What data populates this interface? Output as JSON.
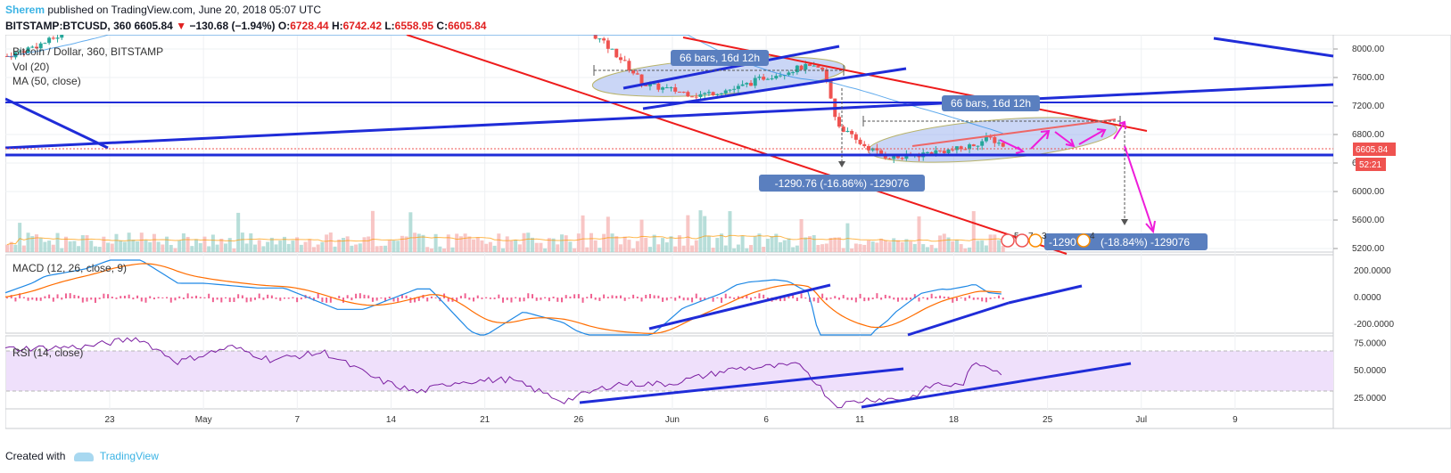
{
  "header": {
    "author": "Sherem",
    "published_text": " published on TradingView.com, June 20, 2018 05:07 UTC",
    "symbol": "BITSTAMP:BTCUSD, 360",
    "last": "6605.84",
    "change_arrow": "▼",
    "change": "−130.68 (−1.94%)",
    "o_label": "O:",
    "o_value": "6728.44",
    "h_label": "H:",
    "h_value": "6742.42",
    "l_label": "L:",
    "l_value": "6558.95",
    "c_label": "C:",
    "c_value": "6605.84"
  },
  "legend": {
    "main": "Bitcoin / Dollar, 360, BITSTAMP",
    "vol": "Vol (20)",
    "ma": "MA (50, close)",
    "macd": "MACD (12, 26, close, 9)",
    "rsi": "RSI (14, close)"
  },
  "annotations": {
    "bars_range_1": "66 bars, 16d 12h",
    "bars_range_2": "66 bars, 16d 12h",
    "drop_1": "-1290.76 (-16.86%) -129076",
    "drop_2_prefix": "-1290",
    "drop_2": "(-18.84%) -129076",
    "event_1": "5",
    "event_2": "7",
    "event_3": "3",
    "event_4": "4"
  },
  "price_axis": {
    "ticks": [
      "8000.00",
      "7600.00",
      "7200.00",
      "6800.00",
      "6400.00",
      "6000.00",
      "5600.00",
      "5200.00"
    ],
    "last_price_tag": "6605.84",
    "countdown_tag": "52:21",
    "last_price_color": "#ef5350"
  },
  "macd_axis": {
    "ticks": [
      "200.0000",
      "0.0000",
      "-200.0000"
    ]
  },
  "rsi_axis": {
    "ticks": [
      "75.0000",
      "50.0000",
      "25.0000"
    ],
    "upper": 70,
    "lower": 30
  },
  "time_axis": {
    "labels": [
      "23",
      "May",
      "7",
      "14",
      "21",
      "26",
      "Jun",
      "6",
      "11",
      "18",
      "25",
      "Jul",
      "9"
    ]
  },
  "footer": {
    "created_with": "Created with",
    "brand": "TradingView"
  },
  "colors": {
    "trendline_blue": "#1f2cd8",
    "trendline_red": "#ee1c1c",
    "ellipse_fill": "#9fb4ef",
    "annotation_bg": "#5a7fbf",
    "arrow_magenta": "#ee1cda",
    "macd_line": "#1e88e5",
    "signal_line": "#ff6d00",
    "rsi_line": "#7b1fa2",
    "rsi_band": "#efe0fb"
  },
  "chart_data": {
    "type": "candlestick",
    "symbol": "BITSTAMP:BTCUSD",
    "interval": "360",
    "price_ylim": [
      5150,
      8200
    ],
    "ma_period": 50,
    "rsi_ylim": [
      15,
      82
    ],
    "last_price": 6605.84,
    "price_path": [
      [
        0,
        7900
      ],
      [
        0.03,
        8100
      ],
      [
        0.07,
        8500
      ],
      [
        0.1,
        9000
      ],
      [
        0.16,
        9300
      ],
      [
        0.22,
        9500
      ],
      [
        0.28,
        9250
      ],
      [
        0.33,
        9400
      ],
      [
        0.36,
        8900
      ],
      [
        0.4,
        8700
      ],
      [
        0.43,
        8400
      ],
      [
        0.46,
        7900
      ],
      [
        0.48,
        7500
      ],
      [
        0.52,
        7350
      ],
      [
        0.55,
        7450
      ],
      [
        0.57,
        7600
      ],
      [
        0.6,
        7750
      ],
      [
        0.615,
        7700
      ],
      [
        0.625,
        6950
      ],
      [
        0.64,
        6700
      ],
      [
        0.66,
        6500
      ],
      [
        0.675,
        6470
      ],
      [
        0.695,
        6550
      ],
      [
        0.72,
        6600
      ],
      [
        0.74,
        6750
      ],
      [
        0.75,
        6650
      ]
    ],
    "rsi_path": [
      [
        0,
        70
      ],
      [
        0.06,
        72
      ],
      [
        0.1,
        80
      ],
      [
        0.13,
        58
      ],
      [
        0.17,
        72
      ],
      [
        0.2,
        60
      ],
      [
        0.24,
        67
      ],
      [
        0.28,
        42
      ],
      [
        0.31,
        30
      ],
      [
        0.34,
        40
      ],
      [
        0.38,
        42
      ],
      [
        0.42,
        22
      ],
      [
        0.46,
        38
      ],
      [
        0.5,
        38
      ],
      [
        0.55,
        52
      ],
      [
        0.6,
        55
      ],
      [
        0.625,
        18
      ],
      [
        0.65,
        24
      ],
      [
        0.68,
        24
      ],
      [
        0.7,
        38
      ],
      [
        0.72,
        36
      ],
      [
        0.73,
        57
      ],
      [
        0.74,
        55
      ],
      [
        0.75,
        48
      ]
    ]
  }
}
